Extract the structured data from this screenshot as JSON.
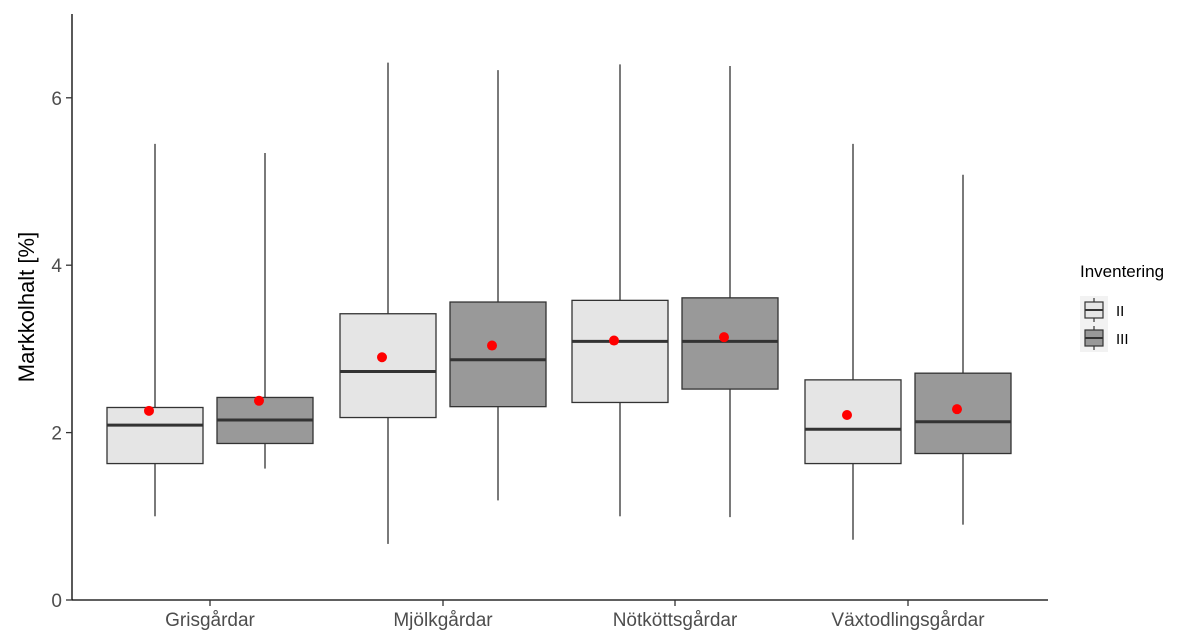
{
  "chart_data": {
    "type": "boxplot",
    "ylabel": "Markkolhalt [%]",
    "xlabel": "",
    "ylim": [
      0,
      7
    ],
    "y_ticks": [
      "0",
      "2",
      "4",
      "6"
    ],
    "y_tick_values": [
      0,
      2,
      4,
      6
    ],
    "categories": [
      "Grisgårdar",
      "Mjölkgårdar",
      "Nötköttsgårdar",
      "Växtodlingsgårdar"
    ],
    "grid": false,
    "legend": {
      "title": "Inventering",
      "position": "right",
      "entries": [
        {
          "label": "II",
          "fill": "#e5e5e5"
        },
        {
          "label": "III",
          "fill": "#999999"
        }
      ]
    },
    "mean_point_color": "#ff0000",
    "series": [
      {
        "name": "II",
        "fill": "#e5e5e5",
        "boxes": [
          {
            "category": "Grisgårdar",
            "whisker_low": 1.0,
            "q1": 1.63,
            "median": 2.09,
            "q3": 2.3,
            "whisker_high": 5.45,
            "mean": 2.26
          },
          {
            "category": "Mjölkgårdar",
            "whisker_low": 0.67,
            "q1": 2.18,
            "median": 2.73,
            "q3": 3.42,
            "whisker_high": 6.42,
            "mean": 2.9
          },
          {
            "category": "Nötköttsgårdar",
            "whisker_low": 1.0,
            "q1": 2.36,
            "median": 3.09,
            "q3": 3.58,
            "whisker_high": 6.4,
            "mean": 3.1
          },
          {
            "category": "Växtodlingsgårdar",
            "whisker_low": 0.72,
            "q1": 1.63,
            "median": 2.04,
            "q3": 2.63,
            "whisker_high": 5.45,
            "mean": 2.21
          }
        ]
      },
      {
        "name": "III",
        "fill": "#999999",
        "boxes": [
          {
            "category": "Grisgårdar",
            "whisker_low": 1.57,
            "q1": 1.87,
            "median": 2.15,
            "q3": 2.42,
            "whisker_high": 5.34,
            "mean": 2.38
          },
          {
            "category": "Mjölkgårdar",
            "whisker_low": 1.19,
            "q1": 2.31,
            "median": 2.87,
            "q3": 3.56,
            "whisker_high": 6.33,
            "mean": 3.04
          },
          {
            "category": "Nötköttsgårdar",
            "whisker_low": 0.99,
            "q1": 2.52,
            "median": 3.09,
            "q3": 3.61,
            "whisker_high": 6.38,
            "mean": 3.14
          },
          {
            "category": "Växtodlingsgårdar",
            "whisker_low": 0.9,
            "q1": 1.75,
            "median": 2.13,
            "q3": 2.71,
            "whisker_high": 5.08,
            "mean": 2.28
          }
        ]
      }
    ]
  }
}
